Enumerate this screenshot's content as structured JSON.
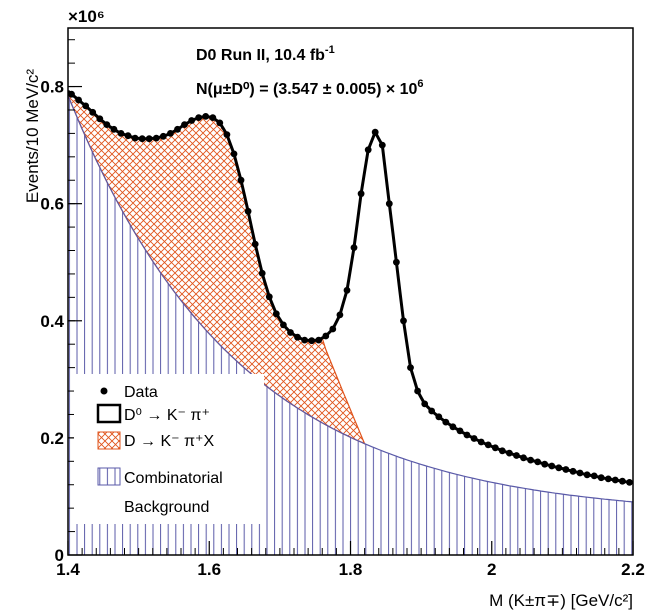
{
  "chart_data": {
    "type": "line",
    "annotation_line1": "D0 Run II, 10.4 fb",
    "annotation_line1_sup": "-1",
    "annotation_line2": "N(μ±D⁰) =  (3.547 ± 0.005) × 10",
    "annotation_line2_sup": "6",
    "xlabel": "M (K±π∓) [GeV/c²]",
    "ylabel": "Events/10 MeV/c²",
    "y_multiplier": "×10⁶",
    "xlim": [
      1.4,
      2.2
    ],
    "ylim": [
      0,
      0.9
    ],
    "x_ticks": [
      "1.4",
      "1.6",
      "1.8",
      "2",
      "2.2"
    ],
    "y_ticks": [
      "0",
      "0.2",
      "0.4",
      "0.6",
      "0.8"
    ],
    "x_tick_values": [
      1.4,
      1.6,
      1.8,
      2.0,
      2.2
    ],
    "y_tick_values": [
      0,
      0.2,
      0.4,
      0.6,
      0.8
    ],
    "legend": {
      "position": "bottom-left",
      "items": [
        {
          "label": "Data",
          "symbol": "dot"
        },
        {
          "label": "D⁰ → K⁻ π⁺",
          "symbol": "box"
        },
        {
          "label": "D →  K⁻ π⁺X",
          "symbol": "crosshatch"
        },
        {
          "label": "Combinatorial",
          "symbol": "vertical-hatch"
        },
        {
          "label": "Background",
          "symbol": "none"
        }
      ]
    },
    "colors": {
      "data": "#000000",
      "total_fit": "#000000",
      "reflection_fill": "#e0541c",
      "background_fill": "#5a5aa8"
    },
    "series": [
      {
        "name": "Data",
        "x": [
          1.405,
          1.415,
          1.425,
          1.435,
          1.445,
          1.455,
          1.465,
          1.475,
          1.485,
          1.495,
          1.505,
          1.515,
          1.525,
          1.535,
          1.545,
          1.555,
          1.565,
          1.575,
          1.585,
          1.595,
          1.605,
          1.615,
          1.625,
          1.635,
          1.645,
          1.655,
          1.665,
          1.675,
          1.685,
          1.695,
          1.705,
          1.715,
          1.725,
          1.735,
          1.745,
          1.755,
          1.765,
          1.775,
          1.785,
          1.795,
          1.805,
          1.815,
          1.825,
          1.835,
          1.845,
          1.855,
          1.865,
          1.875,
          1.885,
          1.895,
          1.905,
          1.915,
          1.925,
          1.935,
          1.945,
          1.955,
          1.965,
          1.975,
          1.985,
          1.995,
          2.005,
          2.015,
          2.025,
          2.035,
          2.045,
          2.055,
          2.065,
          2.075,
          2.085,
          2.095,
          2.105,
          2.115,
          2.125,
          2.135,
          2.145,
          2.155,
          2.165,
          2.175,
          2.185,
          2.195
        ],
        "y": [
          0.787,
          0.777,
          0.767,
          0.756,
          0.745,
          0.735,
          0.727,
          0.72,
          0.716,
          0.712,
          0.711,
          0.711,
          0.712,
          0.715,
          0.72,
          0.727,
          0.735,
          0.742,
          0.747,
          0.749,
          0.747,
          0.738,
          0.718,
          0.685,
          0.64,
          0.587,
          0.531,
          0.481,
          0.441,
          0.412,
          0.393,
          0.38,
          0.372,
          0.367,
          0.366,
          0.367,
          0.374,
          0.386,
          0.41,
          0.452,
          0.525,
          0.617,
          0.692,
          0.722,
          0.7,
          0.6,
          0.5,
          0.4,
          0.32,
          0.28,
          0.258,
          0.246,
          0.236,
          0.227,
          0.219,
          0.212,
          0.205,
          0.199,
          0.193,
          0.188,
          0.183,
          0.178,
          0.174,
          0.17,
          0.166,
          0.162,
          0.159,
          0.155,
          0.152,
          0.149,
          0.146,
          0.143,
          0.14,
          0.137,
          0.135,
          0.132,
          0.13,
          0.128,
          0.126,
          0.124
        ]
      }
    ]
  }
}
